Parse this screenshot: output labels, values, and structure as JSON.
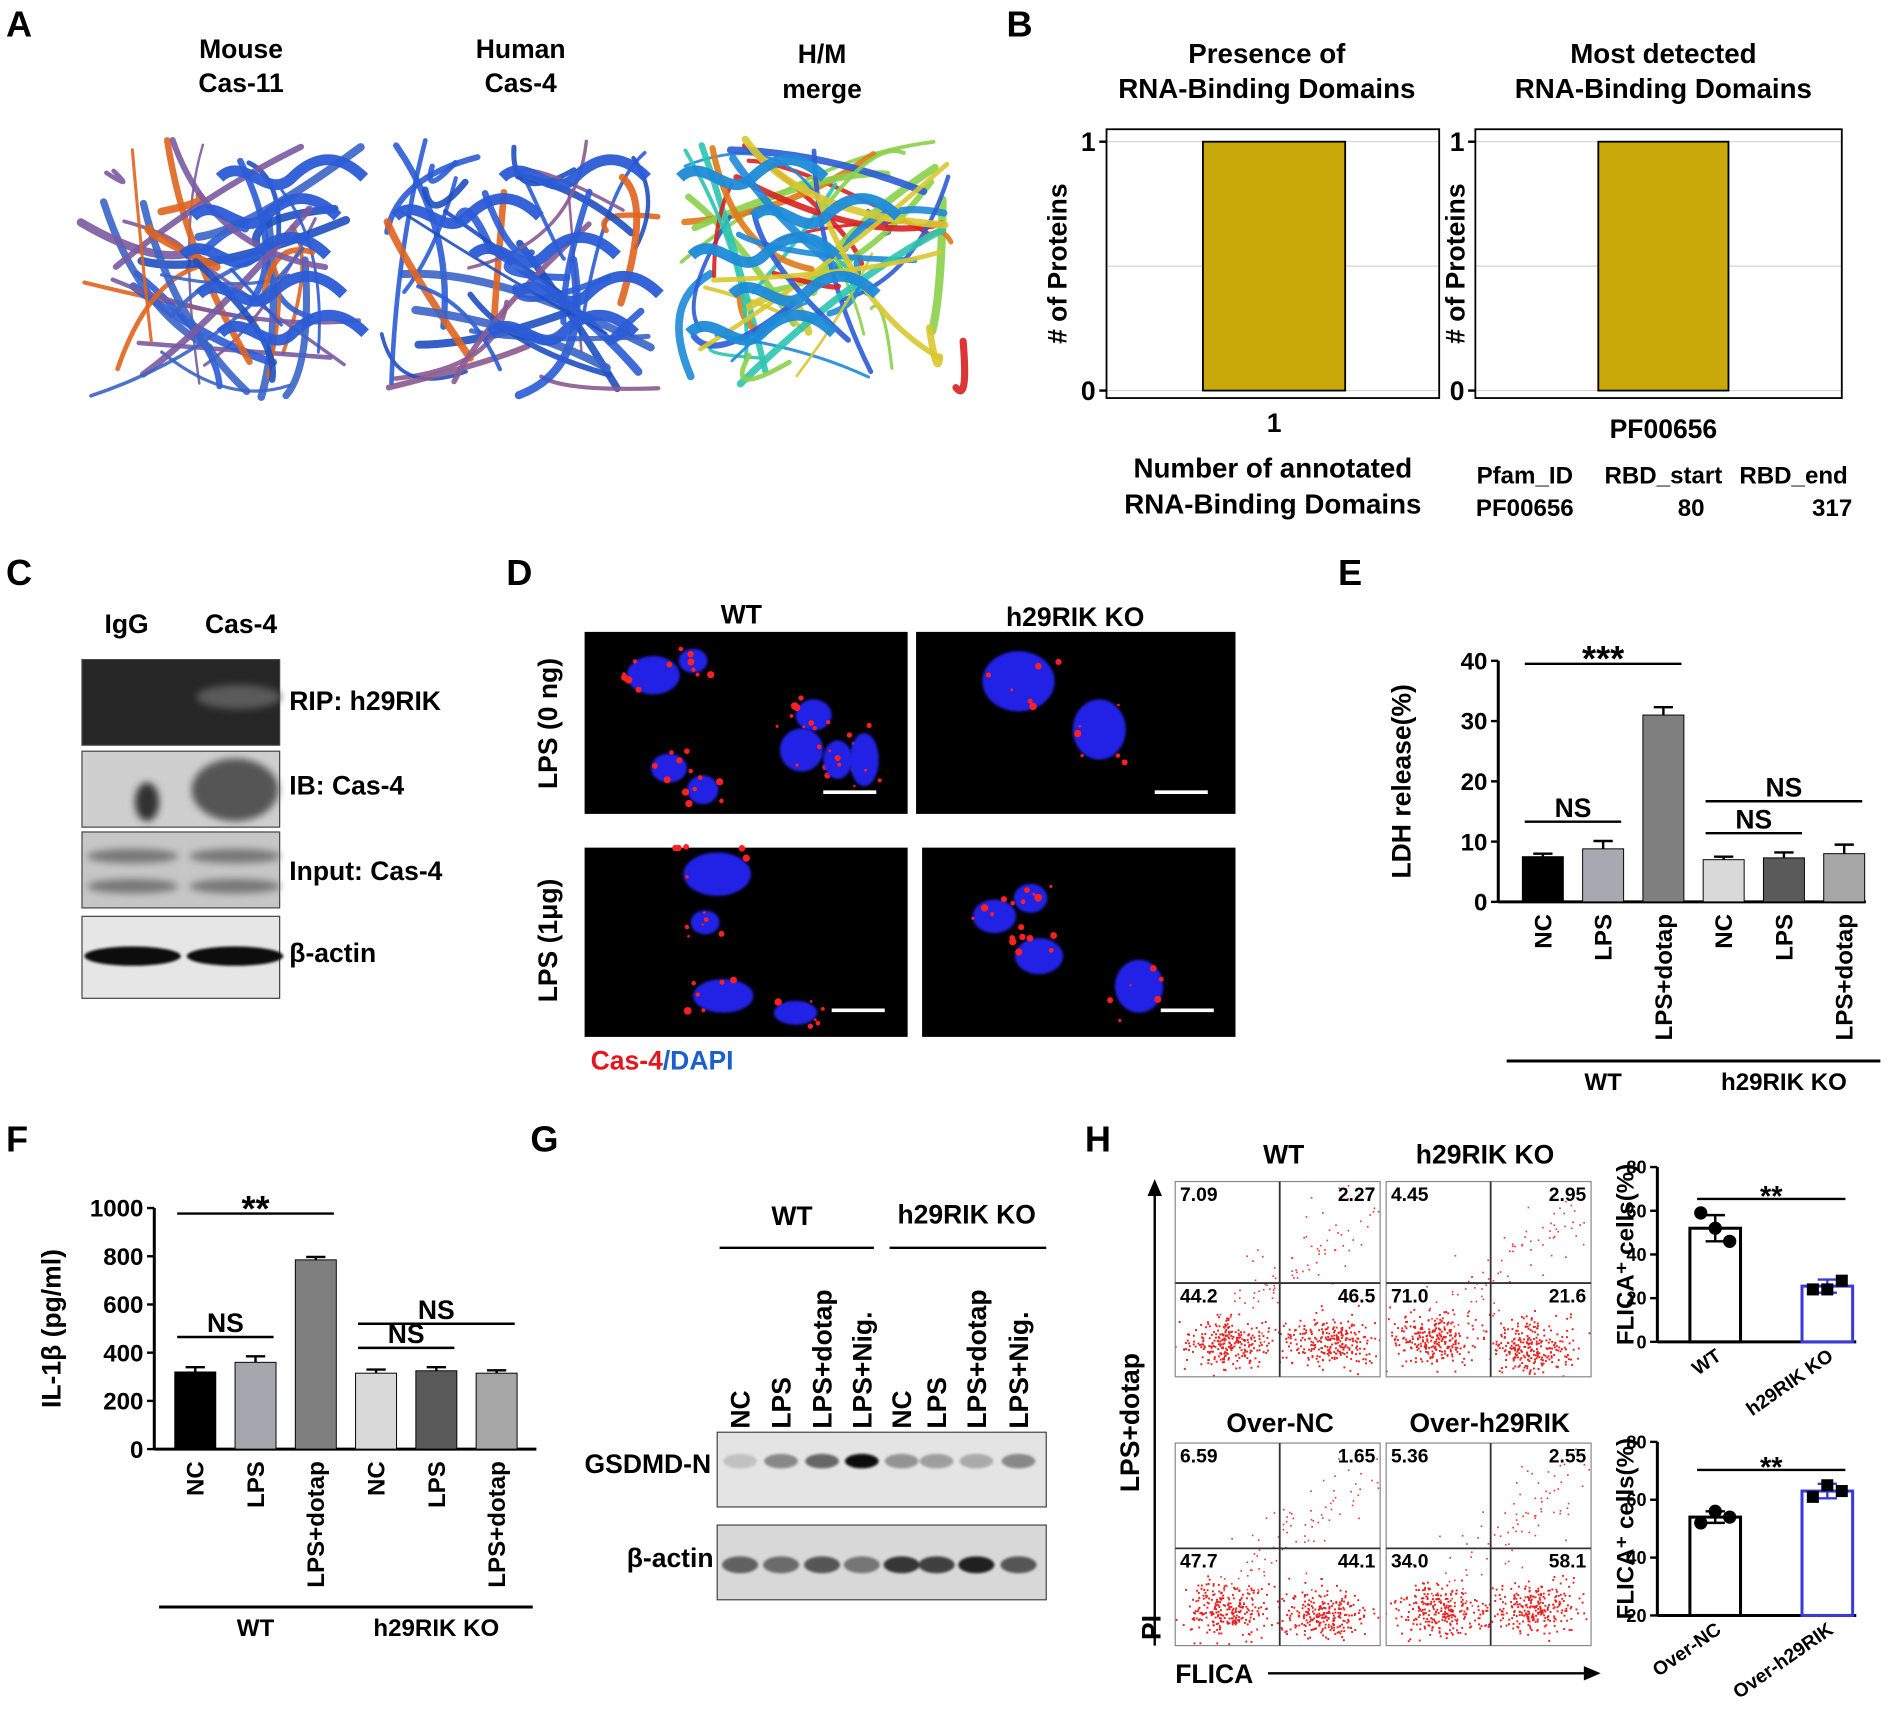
{
  "panel_labels": [
    "A",
    "B",
    "C",
    "D",
    "E",
    "F",
    "G",
    "H"
  ],
  "panel_a": {
    "titles": [
      [
        "Mouse",
        "Cas-11"
      ],
      [
        "Human",
        "Cas-4"
      ],
      [
        "H/M",
        "merge"
      ]
    ]
  },
  "panel_c": {
    "lanes": [
      "IgG",
      "Cas-4"
    ],
    "blots": [
      "RIP: h29RIK",
      "IB: Cas-4",
      "Input: Cas-4",
      "β-actin"
    ]
  },
  "panel_d": {
    "columns": [
      "WT",
      "h29RIK KO"
    ],
    "rows": [
      "LPS (0 ng)",
      "LPS (1μg)"
    ],
    "stain": [
      "Cas-4",
      "/DAPI"
    ]
  },
  "panel_g": {
    "groups": [
      "WT",
      "h29RIK KO"
    ],
    "lanes": [
      "NC",
      "LPS",
      "LPS+dotap",
      "LPS+Nig.",
      "NC",
      "LPS",
      "LPS+dotap",
      "LPS+Nig."
    ],
    "blots": [
      "GSDMD-N",
      "β-actin"
    ]
  },
  "panel_h": {
    "plots": [
      {
        "title": "WT",
        "quadrants": [
          "7.09",
          "2.27",
          "44.2",
          "46.5"
        ]
      },
      {
        "title": "h29RIK KO",
        "quadrants": [
          "4.45",
          "2.95",
          "71.0",
          "21.6"
        ]
      },
      {
        "title": "Over-NC",
        "quadrants": [
          "6.59",
          "1.65",
          "47.7",
          "44.1"
        ]
      },
      {
        "title": "Over-h29RIK",
        "quadrants": [
          "5.36",
          "2.55",
          "34.0",
          "58.1"
        ]
      }
    ],
    "condition": "LPS+dotap",
    "y_axis": "PI",
    "x_axis": "FLICA"
  },
  "chart_data": [
    {
      "type": "bar",
      "title": [
        "Presence of",
        "RNA-Binding Domains"
      ],
      "ylabel": "# of Proteins",
      "xlabel": [
        "Number of annotated",
        "RNA-Binding Domains"
      ],
      "categories": [
        "1"
      ],
      "values": [
        1
      ],
      "color": "#c9a90a",
      "ylim": [
        -0.03,
        1.05
      ],
      "yticks": [
        0,
        1
      ],
      "grid": [
        0,
        0.5,
        1
      ],
      "frame": true
    },
    {
      "type": "bar",
      "title": [
        "Most detected",
        "RNA-Binding Domains"
      ],
      "ylabel": "# of Proteins",
      "categories": [
        "PF00656"
      ],
      "values": [
        1
      ],
      "color": "#c9a90a",
      "ylim": [
        -0.03,
        1.05
      ],
      "yticks": [
        0,
        1
      ],
      "grid": [
        0,
        0.5,
        1
      ],
      "frame": true,
      "table": {
        "columns": [
          "Pfam_ID",
          "RBD_start",
          "RBD_end"
        ],
        "rows": [
          [
            "PF00656",
            80,
            317
          ]
        ]
      }
    },
    {
      "type": "bar",
      "ylabel": "LDH release(%)",
      "ylim": [
        0,
        40
      ],
      "yticks": [
        0,
        10,
        20,
        30,
        40
      ],
      "series": [
        {
          "name": "WT",
          "categories": [
            "NC",
            "LPS",
            "LPS+dotap"
          ],
          "values": [
            7.5,
            8.8,
            31
          ],
          "errors": [
            0.5,
            1.3,
            1.3
          ],
          "colors": [
            "#000000",
            "#a8a8b0",
            "#7f7f7f"
          ]
        },
        {
          "name": "h29RIK KO",
          "categories": [
            "NC",
            "LPS",
            "LPS+dotap"
          ],
          "values": [
            7,
            7.3,
            8
          ],
          "errors": [
            0.5,
            0.9,
            1.5
          ],
          "colors": [
            "#d9d9d9",
            "#5a5a5a",
            "#a6a6a6"
          ]
        }
      ],
      "significance": [
        {
          "label": "***",
          "between": [
            [
              0,
              0
            ],
            [
              0,
              2
            ]
          ]
        },
        {
          "label": "NS",
          "between": [
            [
              0,
              0
            ],
            [
              0,
              1
            ]
          ]
        },
        {
          "label": "NS",
          "between": [
            [
              1,
              0
            ],
            [
              1,
              1
            ]
          ]
        },
        {
          "label": "NS",
          "between": [
            [
              1,
              0
            ],
            [
              1,
              2
            ]
          ]
        }
      ]
    },
    {
      "type": "bar",
      "ylabel": "IL-1β (pg/ml)",
      "ylim": [
        0,
        1000
      ],
      "yticks": [
        0,
        200,
        400,
        600,
        800,
        1000
      ],
      "series": [
        {
          "name": "WT",
          "categories": [
            "NC",
            "LPS",
            "LPS+dotap"
          ],
          "values": [
            320,
            360,
            785
          ],
          "errors": [
            20,
            25,
            12
          ],
          "colors": [
            "#000000",
            "#a6a6ae",
            "#7f7f7f"
          ]
        },
        {
          "name": "h29RIK KO",
          "categories": [
            "NC",
            "LPS",
            "LPS+dotap"
          ],
          "values": [
            315,
            325,
            315
          ],
          "errors": [
            15,
            15,
            12
          ],
          "colors": [
            "#d9d9d9",
            "#595959",
            "#a6a6a6"
          ]
        }
      ],
      "significance": [
        {
          "label": "**",
          "between": [
            [
              0,
              0
            ],
            [
              0,
              2
            ]
          ]
        },
        {
          "label": "NS",
          "between": [
            [
              0,
              0
            ],
            [
              0,
              1
            ]
          ]
        },
        {
          "label": "NS",
          "between": [
            [
              1,
              0
            ],
            [
              1,
              1
            ]
          ]
        },
        {
          "label": "NS",
          "between": [
            [
              1,
              0
            ],
            [
              1,
              2
            ]
          ]
        }
      ]
    },
    {
      "type": "bar",
      "ylabel": "FLICA⁺ cells(%)",
      "ylim": [
        0,
        80
      ],
      "yticks": [
        0,
        20,
        40,
        60,
        80
      ],
      "categories": [
        "WT",
        "h29RIK KO"
      ],
      "values": [
        52,
        25.5
      ],
      "errors": [
        6,
        3
      ],
      "points": [
        [
          59,
          52,
          46
        ],
        [
          24,
          24,
          28
        ]
      ],
      "colors": [
        "#000000",
        "#3a3ad8"
      ],
      "markers": [
        "circle",
        "square"
      ],
      "bar_style": "outline",
      "significance": [
        {
          "label": "**",
          "between": [
            [
              0,
              0
            ],
            [
              0,
              1
            ]
          ]
        }
      ]
    },
    {
      "type": "bar",
      "ylabel": "FLICA⁺ cells(%)",
      "ylim": [
        20,
        80
      ],
      "yticks": [
        20,
        40,
        60,
        80
      ],
      "categories": [
        "Over-NC",
        "Over-h29RIK"
      ],
      "values": [
        54,
        63
      ],
      "errors": [
        2,
        2.5
      ],
      "points": [
        [
          52,
          56,
          54
        ],
        [
          61,
          65,
          63
        ]
      ],
      "colors": [
        "#000000",
        "#3a3ad8"
      ],
      "markers": [
        "circle",
        "square"
      ],
      "bar_style": "outline",
      "significance": [
        {
          "label": "**",
          "between": [
            [
              0,
              0
            ],
            [
              0,
              1
            ]
          ]
        }
      ]
    }
  ]
}
